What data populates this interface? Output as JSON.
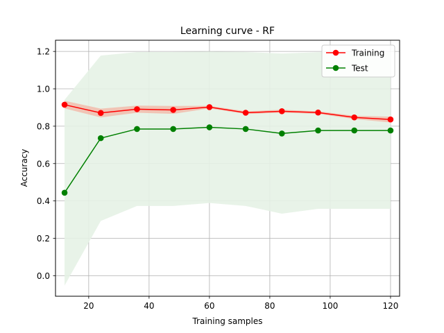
{
  "chart_data": {
    "type": "line",
    "title": "Learning curve - RF",
    "xlabel": "Training samples",
    "ylabel": "Accuracy",
    "xlim": [
      9,
      123
    ],
    "ylim": [
      -0.11,
      1.26
    ],
    "xticks": [
      20,
      40,
      60,
      80,
      100,
      120
    ],
    "yticks": [
      0.0,
      0.2,
      0.4,
      0.6,
      0.8,
      1.0,
      1.2
    ],
    "grid": true,
    "legend_position": "top-right",
    "x": [
      12,
      24,
      36,
      48,
      60,
      72,
      84,
      96,
      108,
      120
    ],
    "series": [
      {
        "name": "Training",
        "color": "#ff0000",
        "band_color": "#f4b4a4",
        "values": [
          0.915,
          0.871,
          0.891,
          0.887,
          0.902,
          0.872,
          0.88,
          0.873,
          0.847,
          0.836
        ],
        "band_lower": [
          0.895,
          0.847,
          0.872,
          0.866,
          0.895,
          0.865,
          0.872,
          0.866,
          0.838,
          0.82
        ],
        "band_upper": [
          0.936,
          0.894,
          0.91,
          0.908,
          0.909,
          0.88,
          0.888,
          0.88,
          0.856,
          0.851
        ]
      },
      {
        "name": "Test",
        "color": "#008000",
        "band_color": "#e5f2e5",
        "values": [
          0.444,
          0.736,
          0.785,
          0.785,
          0.794,
          0.785,
          0.761,
          0.777,
          0.777,
          0.777
        ],
        "band_lower": [
          -0.053,
          0.293,
          0.373,
          0.373,
          0.389,
          0.373,
          0.332,
          0.358,
          0.358,
          0.358
        ],
        "band_upper": [
          0.941,
          1.178,
          1.197,
          1.197,
          1.199,
          1.197,
          1.189,
          1.196,
          1.196,
          1.196
        ]
      }
    ]
  }
}
